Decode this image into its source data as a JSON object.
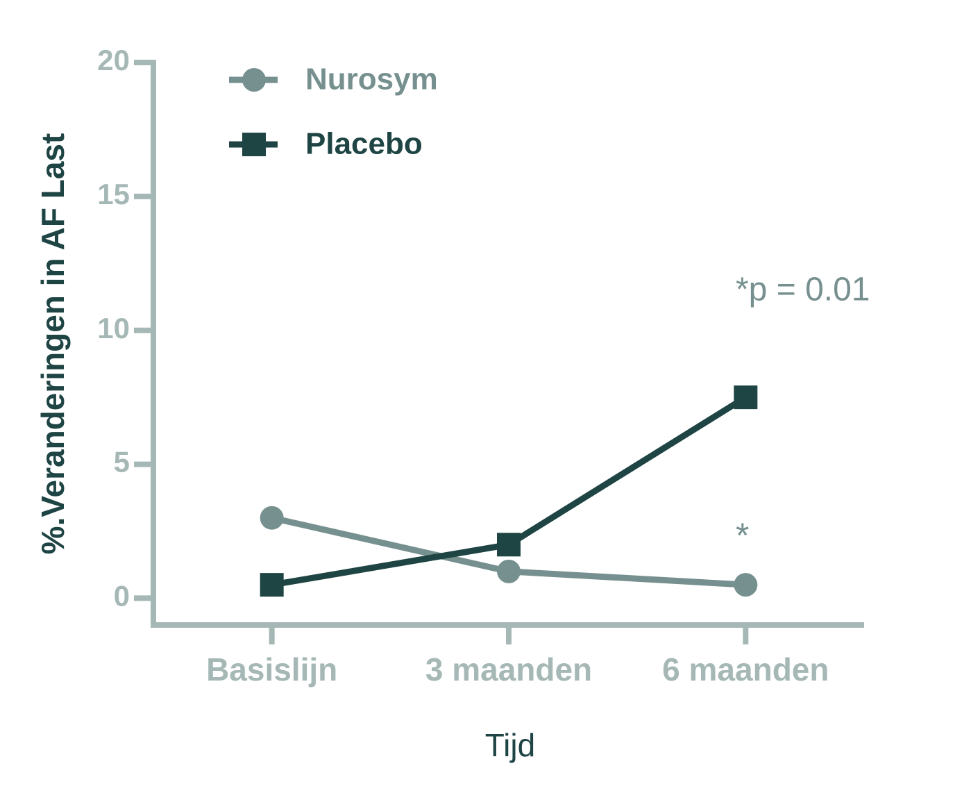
{
  "chart_data": {
    "type": "line",
    "y_label": "%.Veranderingen in AF Last",
    "x_label": "Tijd",
    "categories": [
      "Basislijn",
      "3 maanden",
      "6 maanden"
    ],
    "series": [
      {
        "name": "Nurosym",
        "color": "#76908f",
        "marker": "circle",
        "values": [
          3,
          1,
          0.5
        ]
      },
      {
        "name": "Placebo",
        "color": "#1f4444",
        "marker": "square",
        "values": [
          0.5,
          2,
          7.5
        ]
      }
    ],
    "ylim": [
      -1,
      20
    ],
    "yticks": [
      0,
      5,
      10,
      15,
      20
    ],
    "annotations": [
      "*p = 0.01",
      "*"
    ],
    "axis_color": "#a5b8b6"
  }
}
